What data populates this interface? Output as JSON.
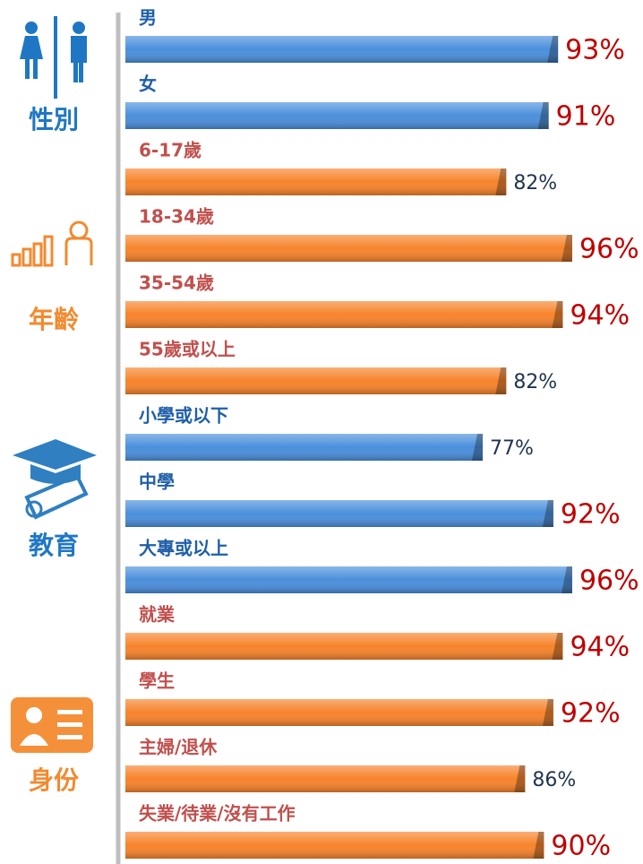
{
  "chart_data": {
    "type": "bar",
    "xlim": [
      0,
      100
    ],
    "groups": [
      {
        "name": "性別",
        "color": "#4a8fdc",
        "label_color": "#1f5fa8",
        "categories": [
          "男",
          "女"
        ],
        "values": [
          93,
          91
        ],
        "value_labels": [
          "93%",
          "91%"
        ],
        "value_label_colors": [
          "#c00000",
          "#c00000"
        ]
      },
      {
        "name": "年齡",
        "color": "#f7832b",
        "label_color": "#c0504d",
        "categories": [
          "6-17歲",
          "18-34歲",
          "35-54歲",
          "55歲或以上"
        ],
        "values": [
          82,
          96,
          94,
          82
        ],
        "value_labels": [
          "82%",
          "96%",
          "94%",
          "82%"
        ],
        "value_label_colors": [
          "#1f3350",
          "#c00000",
          "#c00000",
          "#1f3350"
        ]
      },
      {
        "name": "教育",
        "color": "#4a8fdc",
        "label_color": "#1f5fa8",
        "categories": [
          "小學或以下",
          "中學",
          "大專或以上"
        ],
        "values": [
          77,
          92,
          96
        ],
        "value_labels": [
          "77%",
          "92%",
          "96%"
        ],
        "value_label_colors": [
          "#1f3350",
          "#c00000",
          "#c00000"
        ]
      },
      {
        "name": "身份",
        "color": "#f7832b",
        "label_color": "#c0504d",
        "categories": [
          "就業",
          "學生",
          "主婦/退休",
          "失業/待業/沒有工作"
        ],
        "values": [
          94,
          92,
          86,
          90
        ],
        "value_labels": [
          "94%",
          "92%",
          "86%",
          "90%"
        ],
        "value_label_colors": [
          "#c00000",
          "#c00000",
          "#1f3350",
          "#c00000"
        ]
      }
    ]
  }
}
